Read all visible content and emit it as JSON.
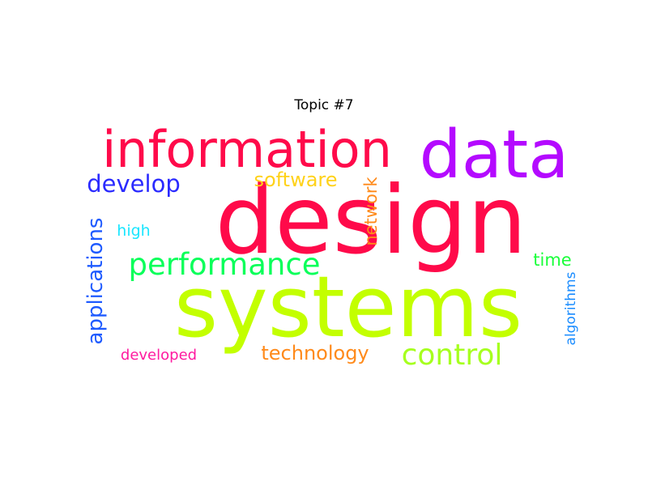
{
  "title": "Topic #7",
  "words": [
    {
      "id": "design",
      "text": "design",
      "color": "#ff0a4a"
    },
    {
      "id": "systems",
      "text": "systems",
      "color": "#c3ff00"
    },
    {
      "id": "information",
      "text": "information",
      "color": "#ff0a4a"
    },
    {
      "id": "data",
      "text": "data",
      "color": "#b40aff"
    },
    {
      "id": "performance",
      "text": "performance",
      "color": "#0aff5a"
    },
    {
      "id": "control",
      "text": "control",
      "color": "#a6ff1f"
    },
    {
      "id": "develop",
      "text": "develop",
      "color": "#2a2aff"
    },
    {
      "id": "software",
      "text": "software",
      "color": "#ffd21a"
    },
    {
      "id": "applications",
      "text": "applications",
      "color": "#1e5aff"
    },
    {
      "id": "technology",
      "text": "technology",
      "color": "#ff8a1a"
    },
    {
      "id": "network",
      "text": "network",
      "color": "#ff8a1a"
    },
    {
      "id": "high",
      "text": "high",
      "color": "#1ae6ff"
    },
    {
      "id": "time",
      "text": "time",
      "color": "#1aff3a"
    },
    {
      "id": "developed",
      "text": "developed",
      "color": "#ff1aa0"
    },
    {
      "id": "algorithms",
      "text": "algorithms",
      "color": "#1a8cff"
    }
  ]
}
